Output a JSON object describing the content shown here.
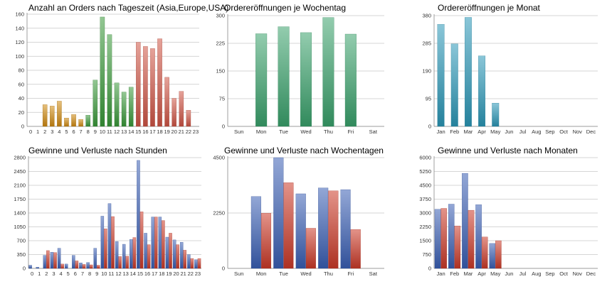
{
  "chart_data": [
    {
      "type": "bar",
      "title": "Anzahl an Orders nach Tageszeit (Asia,Europe,USA)",
      "categories": [
        "0",
        "1",
        "2",
        "3",
        "4",
        "5",
        "6",
        "7",
        "8",
        "9",
        "10",
        "11",
        "12",
        "13",
        "14",
        "15",
        "16",
        "17",
        "18",
        "19",
        "20",
        "21",
        "22",
        "23"
      ],
      "values": [
        0,
        0,
        31,
        29,
        36,
        12,
        17,
        10,
        16,
        66,
        156,
        131,
        62,
        49,
        56,
        120,
        114,
        111,
        125,
        70,
        40,
        50,
        23,
        0
      ],
      "yticks": [
        "0",
        "20",
        "40",
        "60",
        "80",
        "100",
        "120",
        "140",
        "160"
      ],
      "ylim": [
        0,
        160
      ],
      "bar_colors": [
        "#d08a10",
        "#d08a10",
        "#d08a10",
        "#d08a10",
        "#d08a10",
        "#d08a10",
        "#d08a10",
        "#d08a10",
        "#3a9a3a",
        "#3a9a3a",
        "#3a9a3a",
        "#3a9a3a",
        "#3a9a3a",
        "#3a9a3a",
        "#3a9a3a",
        "#d05545",
        "#d05545",
        "#d05545",
        "#d05545",
        "#d05545",
        "#d05545",
        "#d05545",
        "#d05545",
        "#d05545"
      ],
      "grid": true
    },
    {
      "type": "bar",
      "title": "Ordereröffnungen je Wochentag",
      "categories": [
        "Sun",
        "Mon",
        "Tue",
        "Wed",
        "Thu",
        "Fri",
        "Sat"
      ],
      "values": [
        0,
        251,
        270,
        254,
        295,
        250,
        0
      ],
      "yticks": [
        "0",
        "75",
        "150",
        "225",
        "300"
      ],
      "ylim": [
        0,
        300
      ],
      "color": "#3aa26c",
      "grid": true
    },
    {
      "type": "bar",
      "title": "Ordereröffnungen je Monat",
      "categories": [
        "Jan",
        "Feb",
        "Mar",
        "Apr",
        "May",
        "Jun",
        "Jul",
        "Aug",
        "Sep",
        "Oct",
        "Nov",
        "Dec"
      ],
      "values": [
        350,
        283,
        374,
        242,
        80,
        0,
        0,
        0,
        0,
        0,
        0,
        0
      ],
      "yticks": [
        "0",
        "95",
        "190",
        "285",
        "380"
      ],
      "ylim": [
        0,
        380
      ],
      "color": "#2a98b8",
      "grid": true
    },
    {
      "type": "bar",
      "title": "Gewinne und Verluste nach Stunden",
      "categories": [
        "0",
        "1",
        "2",
        "3",
        "4",
        "5",
        "6",
        "7",
        "8",
        "9",
        "10",
        "11",
        "12",
        "13",
        "14",
        "15",
        "16",
        "17",
        "18",
        "19",
        "20",
        "21",
        "22",
        "23"
      ],
      "series": [
        {
          "color": "#3a5fb5",
          "values": [
            80,
            30,
            330,
            410,
            510,
            110,
            330,
            140,
            150,
            510,
            1320,
            1640,
            680,
            610,
            730,
            2730,
            890,
            1300,
            1300,
            790,
            720,
            660,
            350,
            220
          ]
        },
        {
          "color": "#cc3a28",
          "values": [
            0,
            0,
            450,
            400,
            110,
            0,
            190,
            100,
            90,
            80,
            1000,
            1310,
            300,
            310,
            780,
            1430,
            600,
            1300,
            1210,
            890,
            600,
            460,
            250,
            250
          ]
        }
      ],
      "yticks": [
        "0",
        "350",
        "700",
        "1050",
        "1400",
        "1750",
        "2100",
        "2450",
        "2800"
      ],
      "ylim": [
        0,
        2800
      ],
      "grid": true
    },
    {
      "type": "bar",
      "title": "Gewinne und Verluste nach Wochentagen",
      "categories": [
        "Sun",
        "Mon",
        "Tue",
        "Wed",
        "Thu",
        "Fri",
        "Sat"
      ],
      "series": [
        {
          "color": "#3a5fb5",
          "values": [
            0,
            2920,
            4500,
            3030,
            3270,
            3200,
            0
          ]
        },
        {
          "color": "#cc3a28",
          "values": [
            0,
            2240,
            3480,
            1630,
            3150,
            1580,
            0
          ]
        }
      ],
      "yticks": [
        "0",
        "2250",
        "4500"
      ],
      "ylim": [
        0,
        4500
      ],
      "grid": true
    },
    {
      "type": "bar",
      "title": "Gewinne und Verluste nach Monaten",
      "categories": [
        "Jan",
        "Feb",
        "Mar",
        "Apr",
        "May",
        "Jun",
        "Jul",
        "Aug",
        "Sep",
        "Oct",
        "Nov",
        "Dec"
      ],
      "series": [
        {
          "color": "#3a5fb5",
          "values": [
            3200,
            3480,
            5150,
            3450,
            1350,
            0,
            0,
            0,
            0,
            0,
            0,
            0
          ]
        },
        {
          "color": "#cc3a28",
          "values": [
            3250,
            2300,
            3150,
            1700,
            1500,
            0,
            0,
            0,
            0,
            0,
            0,
            0
          ]
        }
      ],
      "yticks": [
        "0",
        "750",
        "1500",
        "2250",
        "3000",
        "3750",
        "4500",
        "5250",
        "6000"
      ],
      "ylim": [
        0,
        6000
      ],
      "grid": true
    }
  ]
}
